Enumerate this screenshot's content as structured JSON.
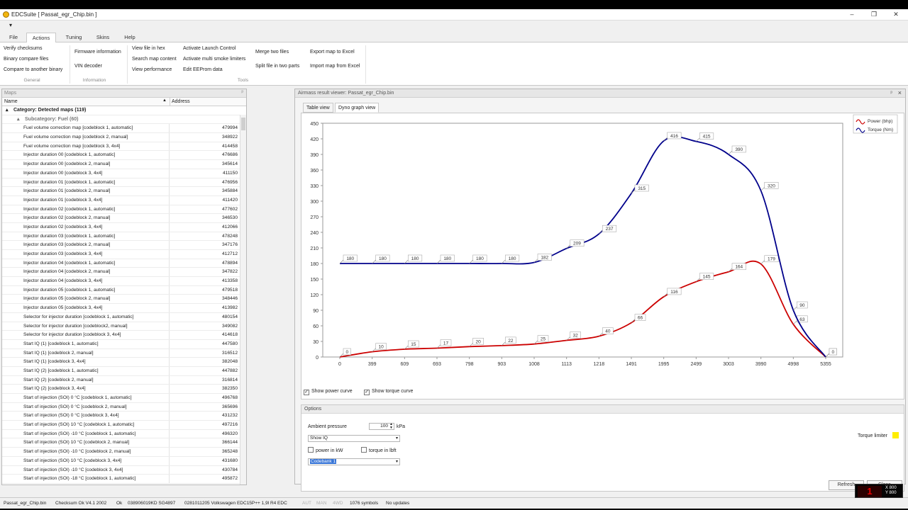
{
  "window": {
    "title": "EDCSuite [ Passat_egr_Chip.bin ]",
    "qat_label": "▾"
  },
  "ribbon_tabs": [
    {
      "label": "File"
    },
    {
      "label": "Actions"
    },
    {
      "label": "Tuning"
    },
    {
      "label": "Skins"
    },
    {
      "label": "Help"
    }
  ],
  "ribbon": {
    "general": [
      "Verify checksums",
      "Binary compare files",
      "Compare to another binary"
    ],
    "information": [
      "Firmware information",
      "VIN decoder"
    ],
    "tools_col1": [
      "View file in hex",
      "Search map content",
      "View performance"
    ],
    "tools_col2": [
      "Activate Launch Control",
      "Activate multi smoke limiters",
      "Edit EEProm data"
    ],
    "tools_col3": [
      "Merge two files",
      "Split file in two parts"
    ],
    "tools_col4": [
      "Export map to Excel",
      "Import map from Excel"
    ],
    "group_general": "General",
    "group_information": "Information",
    "group_tools": "Tools"
  },
  "maps": {
    "title": "Maps",
    "pin": "ᵖ",
    "col_name": "Name",
    "col_address": "Address",
    "category": "Category: Detected maps (119)",
    "subcategory": "Subcategory: Fuel (60)",
    "rows": [
      {
        "name": "Fuel volume correction map [codeblock 1, automatic]",
        "address": "479994"
      },
      {
        "name": "Fuel volume correction map [codeblock 2, manual]",
        "address": "348922"
      },
      {
        "name": "Fuel volume correction map [codeblock 3, 4x4]",
        "address": "414458"
      },
      {
        "name": "Injector duration 00 [codeblock 1, automatic]",
        "address": "476686"
      },
      {
        "name": "Injector duration 00 [codeblock 2, manual]",
        "address": "345614"
      },
      {
        "name": "Injector duration 00 [codeblock 3, 4x4]",
        "address": "411150"
      },
      {
        "name": "Injector duration 01 [codeblock 1, automatic]",
        "address": "476956"
      },
      {
        "name": "Injector duration 01 [codeblock 2, manual]",
        "address": "345884"
      },
      {
        "name": "Injector duration 01 [codeblock 3, 4x4]",
        "address": "411420"
      },
      {
        "name": "Injector duration 02 [codeblock 1, automatic]",
        "address": "477602"
      },
      {
        "name": "Injector duration 02 [codeblock 2, manual]",
        "address": "346530"
      },
      {
        "name": "Injector duration 02 [codeblock 3, 4x4]",
        "address": "412066"
      },
      {
        "name": "Injector duration 03 [codeblock 1, automatic]",
        "address": "478248"
      },
      {
        "name": "Injector duration 03 [codeblock 2, manual]",
        "address": "347176"
      },
      {
        "name": "Injector duration 03 [codeblock 3, 4x4]",
        "address": "412712"
      },
      {
        "name": "Injector duration 04 [codeblock 1, automatic]",
        "address": "478894"
      },
      {
        "name": "Injector duration 04 [codeblock 2, manual]",
        "address": "347822"
      },
      {
        "name": "Injector duration 04 [codeblock 3, 4x4]",
        "address": "413358"
      },
      {
        "name": "Injector duration 05 [codeblock 1, automatic]",
        "address": "479518"
      },
      {
        "name": "Injector duration 05 [codeblock 2, manual]",
        "address": "348446"
      },
      {
        "name": "Injector duration 05 [codeblock 3, 4x4]",
        "address": "413982"
      },
      {
        "name": "Selector for injector duration [codeblock 1, automatic]",
        "address": "480154"
      },
      {
        "name": "Selector for injector duration [codeblock2, manual]",
        "address": "349082"
      },
      {
        "name": "Selector for injector duration [codeblock 3, 4x4]",
        "address": "414618"
      },
      {
        "name": "Start IQ (1) [codeblock 1, automatic]",
        "address": "447580"
      },
      {
        "name": "Start IQ (1) [codeblock 2, manual]",
        "address": "316512"
      },
      {
        "name": "Start IQ (1) [codeblock 3, 4x4]",
        "address": "382048"
      },
      {
        "name": "Start IQ (2) [codeblock 1, automatic]",
        "address": "447882"
      },
      {
        "name": "Start IQ (2) [codeblock 2, manual]",
        "address": "316814"
      },
      {
        "name": "Start IQ (2) [codeblock 3, 4x4]",
        "address": "382350"
      },
      {
        "name": "Start of injection (SOI) 0 °C [codeblock 1, automatic]",
        "address": "496768"
      },
      {
        "name": "Start of injection (SOI) 0 °C [codeblock 2, manual]",
        "address": "365696"
      },
      {
        "name": "Start of injection (SOI) 0 °C [codeblock 3, 4x4]",
        "address": "431232"
      },
      {
        "name": "Start of injection (SOI) 10 °C [codeblock 1, automatic]",
        "address": "497216"
      },
      {
        "name": "Start of injection (SOI) -10 °C [codeblock 1, automatic]",
        "address": "496320"
      },
      {
        "name": "Start of injection (SOI) 10 °C [codeblock 2, manual]",
        "address": "366144"
      },
      {
        "name": "Start of injection (SOI) -10 °C [codeblock 2, manual]",
        "address": "365248"
      },
      {
        "name": "Start of injection (SOI) 10 °C [codeblock 3, 4x4]",
        "address": "431680"
      },
      {
        "name": "Start of injection (SOI) -10 °C [codeblock 3, 4x4]",
        "address": "430784"
      },
      {
        "name": "Start of injection (SOI) -18 °C [codeblock 1, automatic]",
        "address": "495872"
      }
    ]
  },
  "viewer": {
    "title": "Airmass result viewer: Passat_egr_Chip.bin",
    "tab_table": "Table view",
    "tab_dyno": "Dyno graph view",
    "show_power": "Show power curve",
    "show_torque": "Show torque curve",
    "options_title": "Options",
    "ambient_label": "Ambient pressure",
    "ambient_value": "100",
    "ambient_unit": "kPa",
    "show_select": "Show IQ",
    "power_kw": "power in kW",
    "torque_lbft": "torque in lbft",
    "codebank": "Codebank 1",
    "torque_limiter": "Torque limiter",
    "torque_limiter_color": "#ffee00",
    "refresh": "Refresh",
    "close": "Close",
    "pin": "ᵖ",
    "close_x": "×"
  },
  "chart_data": {
    "type": "line",
    "x": [
      "0",
      "399",
      "609",
      "693",
      "798",
      "903",
      "1008",
      "1113",
      "1218",
      "1491",
      "1995",
      "2499",
      "3003",
      "3990",
      "4998",
      "5355"
    ],
    "ylim": [
      0,
      450
    ],
    "yticks": [
      0,
      30,
      60,
      90,
      120,
      150,
      180,
      210,
      240,
      270,
      300,
      330,
      360,
      390,
      420,
      450
    ],
    "legend_position": "top-right",
    "grid": false,
    "series": [
      {
        "name": "Power (bhp)",
        "color": "#cc0000",
        "values": [
          0,
          10,
          15,
          17,
          20,
          22,
          25,
          32,
          40,
          66,
          116,
          145,
          164,
          179,
          63,
          0
        ]
      },
      {
        "name": "Torque (Nm)",
        "color": "#00008b",
        "values": [
          180,
          180,
          180,
          180,
          180,
          180,
          182,
          209,
          237,
          315,
          416,
          415,
          390,
          320,
          90,
          0
        ]
      }
    ]
  },
  "status": {
    "file": "Passat_egr_Chip.bin",
    "checksum": "Checksum Ok V4.1 2002",
    "ok": "Ok",
    "partno": "038906019KD SG4897",
    "ecu": "0281011205 Volkswagen EDC15P++ 1,9l R4 EDC",
    "aut": "AUT",
    "man": "MAN",
    "wd": "4WD",
    "symbols": "1076 symbols",
    "updates": "No updates"
  },
  "overlay": {
    "x_readout": "X 800",
    "y_readout": "Y 800",
    "logo": "1"
  }
}
